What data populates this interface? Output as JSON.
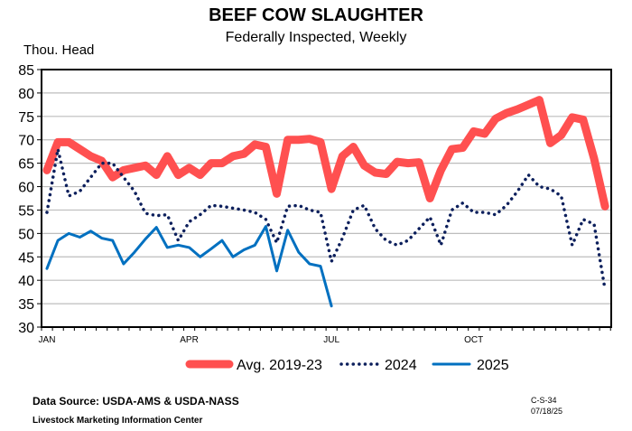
{
  "chart_data": {
    "type": "line",
    "title": "BEEF COW SLAUGHTER",
    "subtitle": "Federally Inspected, Weekly",
    "ylabel": "Thou. Head",
    "ylim": [
      30,
      85
    ],
    "yticks": [
      30,
      35,
      40,
      45,
      50,
      55,
      60,
      65,
      70,
      75,
      80,
      85
    ],
    "x_tick_labels": [
      {
        "label": "JAN",
        "week": 1
      },
      {
        "label": "APR",
        "week": 14
      },
      {
        "label": "JUL",
        "week": 27
      },
      {
        "label": "OCT",
        "week": 40
      }
    ],
    "grid": true,
    "legend": "bottom",
    "series": [
      {
        "name": "Avg. 2019-23",
        "color": "#FF5050",
        "style": "thick",
        "values": [
          63.5,
          69.5,
          69.5,
          68,
          66.5,
          65.5,
          62,
          63.5,
          64,
          64.5,
          62.5,
          66.5,
          62.5,
          64,
          62.5,
          65,
          65,
          66.5,
          67,
          69,
          68.5,
          58.5,
          70,
          70,
          70.2,
          69.5,
          59.5,
          66.5,
          68.5,
          64.5,
          63,
          62.7,
          65.3,
          65,
          65.2,
          57.5,
          63.5,
          68,
          68.3,
          71.8,
          71.3,
          74.5,
          75.7,
          76.5,
          77.5,
          78.5,
          69.3,
          71,
          74.8,
          74.3,
          66,
          55.8
        ]
      },
      {
        "name": "2024",
        "color": "#0C1F5C",
        "style": "dotted",
        "values": [
          54.5,
          68,
          58,
          59,
          62,
          65,
          65,
          62,
          59,
          54.3,
          53.8,
          54,
          48.5,
          52.5,
          54,
          56,
          55.8,
          55.4,
          55,
          54.5,
          53,
          48,
          55.8,
          56,
          55,
          54.5,
          44,
          49,
          55,
          56,
          51,
          48.5,
          47.5,
          48.5,
          51,
          53.5,
          47.5,
          55,
          56.5,
          54.5,
          54.5,
          54,
          56,
          59,
          62.5,
          60,
          59.5,
          58,
          47.5,
          53,
          52,
          38
        ]
      },
      {
        "name": "2025",
        "color": "#0070C0",
        "style": "solid",
        "values": [
          42.5,
          48.5,
          50,
          49.2,
          50.5,
          49,
          48.5,
          43.5,
          46,
          48.8,
          51.3,
          47,
          47.5,
          47,
          45,
          46.7,
          48.5,
          45,
          46.5,
          47.5,
          51.5,
          42,
          50.7,
          46,
          43.5,
          43,
          34.5
        ]
      }
    ]
  },
  "footer": {
    "source": "Data Source:  USDA-AMS & USDA-NASS",
    "org": "Livestock Marketing Information Center",
    "code": "C-S-34",
    "date": "07/18/25"
  }
}
